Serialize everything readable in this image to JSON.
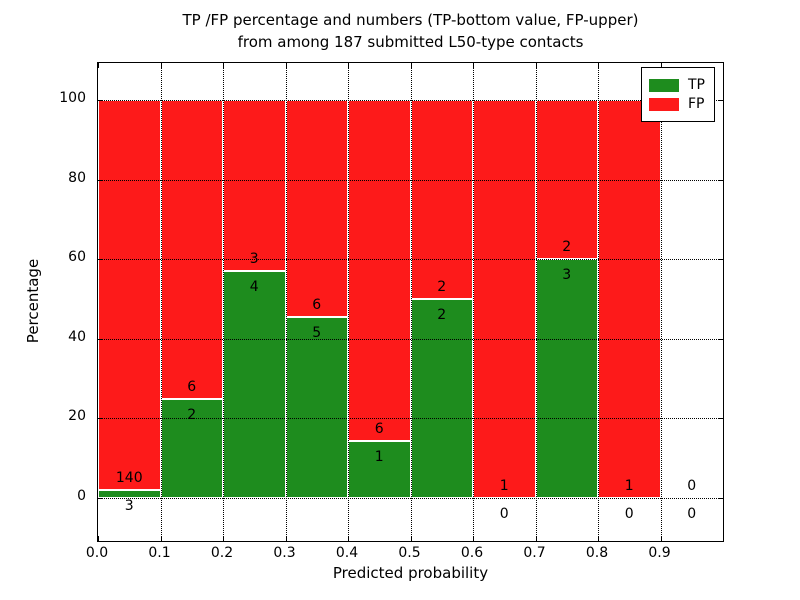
{
  "title": {
    "line1": "TP /FP percentage and numbers (TP-bottom value, FP-upper)",
    "line2": "from among 187 submitted L50-type contacts"
  },
  "chart_data": {
    "type": "bar",
    "stacked": true,
    "title": "TP /FP percentage and numbers (TP-bottom value, FP-upper) from among 187 submitted L50-type contacts",
    "xlabel": "Predicted probability",
    "ylabel": "Percentage",
    "xlim": [
      0.0,
      1.0
    ],
    "ylim": [
      -10.8,
      109.3
    ],
    "bin_edges": [
      0.0,
      0.1,
      0.2,
      0.3,
      0.4,
      0.5,
      0.6,
      0.7,
      0.8,
      0.9,
      1.0
    ],
    "x_tick_labels": [
      "0.0",
      "0.1",
      "0.2",
      "0.3",
      "0.4",
      "0.5",
      "0.6",
      "0.7",
      "0.8",
      "0.9"
    ],
    "y_ticks": [
      0,
      20,
      40,
      60,
      80,
      100
    ],
    "grid": true,
    "legend_position": "upper right",
    "total_contacts": 187,
    "series": [
      {
        "name": "TP",
        "color": "#1e8c1e",
        "counts": [
          3,
          2,
          4,
          5,
          1,
          2,
          0,
          3,
          0,
          0
        ]
      },
      {
        "name": "FP",
        "color": "#fd1a1a",
        "counts": [
          140,
          6,
          3,
          6,
          6,
          2,
          1,
          2,
          1,
          0
        ]
      }
    ],
    "tp_percentages": [
      2.1,
      25.0,
      57.1,
      45.5,
      14.3,
      50.0,
      0.0,
      60.0,
      0.0,
      null
    ],
    "note": "Each non-empty bin is stacked to 100%; TP count label below boundary, FP count label above boundary"
  }
}
